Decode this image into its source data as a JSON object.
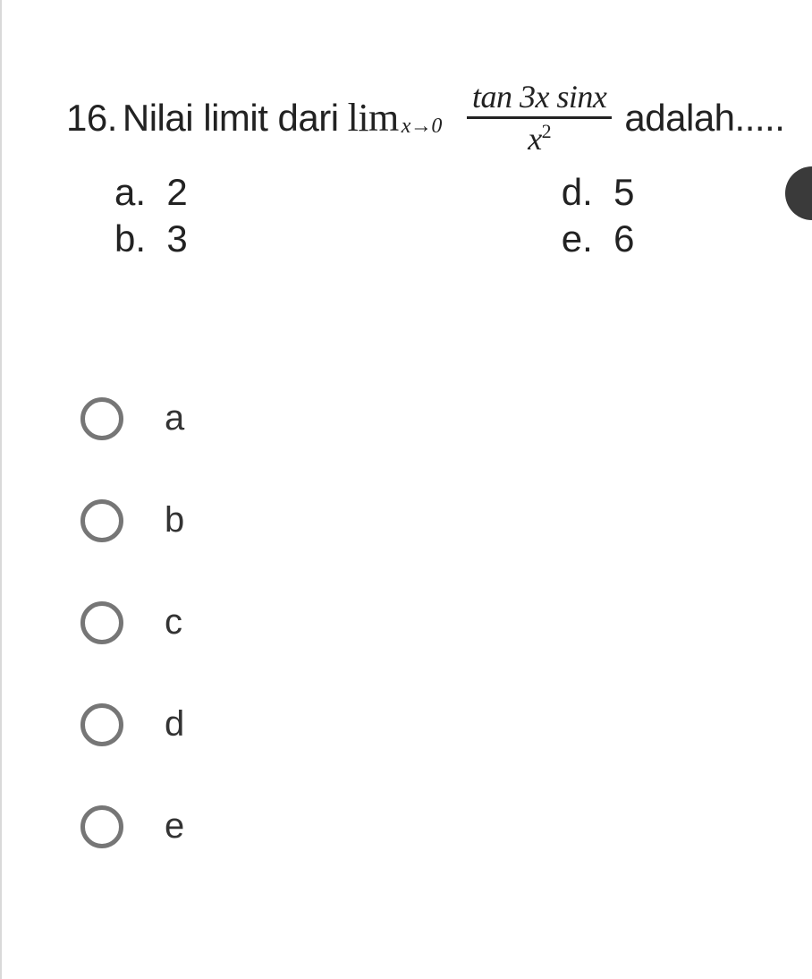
{
  "question": {
    "number": "16.",
    "prefix_text": "Nilai limit dari",
    "limit_symbol": "lim",
    "limit_subscript": "x→0",
    "fraction_top": "tan 3x sinx",
    "fraction_bottom_base": "x",
    "fraction_bottom_exponent": "2",
    "suffix_text": "adalah....."
  },
  "inline_answers": {
    "a": {
      "label": "a.",
      "value": "2"
    },
    "b": {
      "label": "b.",
      "value": "3"
    },
    "d": {
      "label": "d.",
      "value": "5"
    },
    "e": {
      "label": "e.",
      "value": "6"
    }
  },
  "radio_options": [
    {
      "label": "a"
    },
    {
      "label": "b"
    },
    {
      "label": "c"
    },
    {
      "label": "d"
    },
    {
      "label": "e"
    }
  ],
  "colors": {
    "text": "#222222",
    "radio_border": "#767676",
    "page_border": "#d9d9d9",
    "background": "#ffffff",
    "bubble": "#3a3a3a"
  },
  "typography": {
    "question_fontsize": 42,
    "radio_label_fontsize": 40,
    "fraction_fontsize": 36
  }
}
